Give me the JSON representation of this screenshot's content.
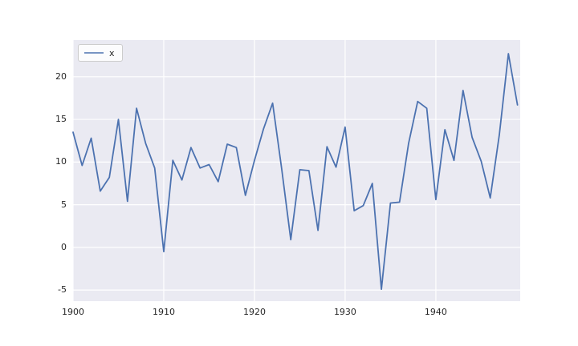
{
  "figure": {
    "background": "#ffffff",
    "axes_background": "#eaeaf2",
    "grid_color": "#ffffff",
    "tick_color": "#262626"
  },
  "legend": {
    "label": "x",
    "line_color": "#4c72b0",
    "position": "upper left"
  },
  "chart_data": {
    "type": "line",
    "title": "",
    "xlabel": "",
    "ylabel": "",
    "grid": true,
    "legend_position": "upper left",
    "xlim": [
      1900,
      1949.3
    ],
    "ylim": [
      -6.3,
      24.3
    ],
    "xticks": [
      1900,
      1910,
      1920,
      1930,
      1940
    ],
    "yticks": [
      -5,
      0,
      5,
      10,
      15,
      20
    ],
    "series": [
      {
        "name": "x",
        "color": "#4c72b0",
        "x": [
          1900,
          1901,
          1902,
          1903,
          1904,
          1905,
          1906,
          1907,
          1908,
          1909,
          1910,
          1911,
          1912,
          1913,
          1914,
          1915,
          1916,
          1917,
          1918,
          1919,
          1920,
          1921,
          1922,
          1923,
          1924,
          1925,
          1926,
          1927,
          1928,
          1929,
          1930,
          1931,
          1932,
          1933,
          1934,
          1935,
          1936,
          1937,
          1938,
          1939,
          1940,
          1941,
          1942,
          1943,
          1944,
          1945,
          1946,
          1947,
          1948,
          1949
        ],
        "values": [
          13.5,
          9.6,
          12.8,
          6.6,
          8.2,
          15.0,
          5.4,
          16.3,
          12.2,
          9.3,
          -0.5,
          10.2,
          7.9,
          11.7,
          9.3,
          9.7,
          7.7,
          12.1,
          11.7,
          6.1,
          10.2,
          13.9,
          16.9,
          9.2,
          0.9,
          9.1,
          9.0,
          2.0,
          11.8,
          9.4,
          14.1,
          4.3,
          4.9,
          7.5,
          -4.9,
          5.2,
          5.3,
          12.2,
          17.1,
          16.3,
          5.6,
          13.8,
          10.2,
          18.4,
          12.9,
          10.1,
          5.8,
          13.2,
          22.7,
          16.7
        ]
      }
    ]
  }
}
